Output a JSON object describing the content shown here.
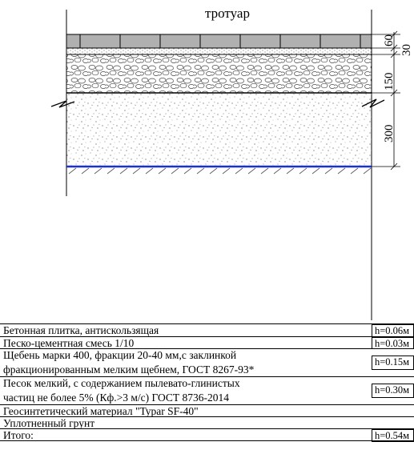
{
  "section": {
    "title": "тротуар",
    "dimensions": [
      "60",
      "30",
      "150",
      "300"
    ]
  },
  "layers": [
    {
      "name_lines": [
        "Бетонная плитка, антискользящая"
      ],
      "h": "h=0.06м"
    },
    {
      "name_lines": [
        "Песко-цементная смесь 1/10"
      ],
      "h": "h=0.03м"
    },
    {
      "name_lines": [
        "Щебень марки 400, фракции 20-40 мм,с заклинкой",
        "фракционированным мелким щебнем, ГОСТ 8267-93*"
      ],
      "h": "h=0.15м"
    },
    {
      "name_lines": [
        "Песок мелкий, с содержанием пылевато-глинистых",
        "частиц не более 5% (Кф.>3 м/с) ГОСТ 8736-2014"
      ],
      "h": "h=0.30м"
    },
    {
      "name_lines": [
        "Геосинтетический материал \"Typar SF-40\""
      ],
      "h": ""
    },
    {
      "name_lines": [
        "Уплотненный грунт"
      ],
      "h": ""
    },
    {
      "name_lines": [
        "Итого:"
      ],
      "h": "h=0.54м"
    }
  ],
  "colors": {
    "geotextile": "#1a2fd6",
    "line": "#000000"
  }
}
